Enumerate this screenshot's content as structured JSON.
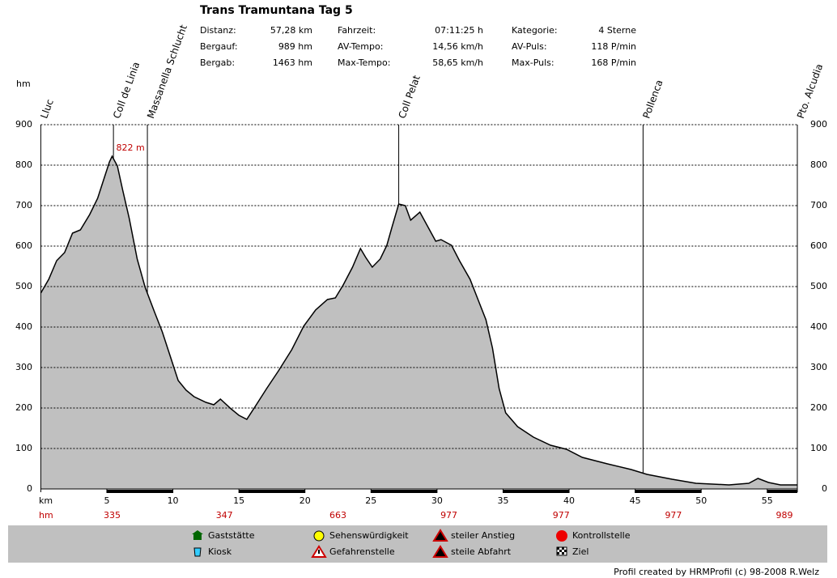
{
  "chart_data": {
    "type": "area",
    "title": "Trans Tramuntana Tag 5",
    "stats": [
      [
        {
          "label": "Distanz:",
          "value": "57,28 km"
        },
        {
          "label": "Bergauf:",
          "value": "989 hm"
        },
        {
          "label": "Bergab:",
          "value": "1463 hm"
        }
      ],
      [
        {
          "label": "Fahrzeit:",
          "value": "07:11:25 h"
        },
        {
          "label": "AV-Tempo:",
          "value": "14,56 km/h"
        },
        {
          "label": "Max-Tempo:",
          "value": "58,65 km/h"
        }
      ],
      [
        {
          "label": "Kategorie:",
          "value": "4 Sterne"
        },
        {
          "label": "AV-Puls:",
          "value": "118 P/min"
        },
        {
          "label": "Max-Puls:",
          "value": "168 P/min"
        }
      ]
    ],
    "x_label": "km",
    "y_label": "hm",
    "xlim": [
      0,
      57.28
    ],
    "ylim": [
      0,
      900
    ],
    "xticks": [
      5,
      10,
      15,
      20,
      25,
      30,
      35,
      40,
      45,
      50,
      55
    ],
    "yticks": [
      0,
      100,
      200,
      300,
      400,
      500,
      600,
      700,
      800,
      900
    ],
    "grid": true,
    "color": "#c0c0c0",
    "x": [
      0,
      0.6,
      1.2,
      1.8,
      2.4,
      3.0,
      3.7,
      4.3,
      4.8,
      5.2,
      5.4,
      5.8,
      6.2,
      6.7,
      7.3,
      7.9,
      8.6,
      9.2,
      9.8,
      10.4,
      11.0,
      11.6,
      12.5,
      13.1,
      13.6,
      14.4,
      15.0,
      15.6,
      16.2,
      17.1,
      18.0,
      19.0,
      19.9,
      20.8,
      21.7,
      22.3,
      22.9,
      23.6,
      24.2,
      24.6,
      25.1,
      25.7,
      26.2,
      26.6,
      27.1,
      27.6,
      28.0,
      28.7,
      29.3,
      29.9,
      30.3,
      31.1,
      31.7,
      32.5,
      33.1,
      33.7,
      34.2,
      34.7,
      35.2,
      36.1,
      37.3,
      38.6,
      39.8,
      41.0,
      42.9,
      44.7,
      45.9,
      47.8,
      49.6,
      52.1,
      53.6,
      54.3,
      55.1,
      56.0,
      57.28
    ],
    "values": [
      484,
      518,
      564,
      584,
      632,
      640,
      678,
      718,
      768,
      808,
      822,
      798,
      738,
      668,
      568,
      498,
      438,
      388,
      328,
      268,
      244,
      228,
      214,
      208,
      222,
      198,
      182,
      172,
      202,
      248,
      292,
      344,
      402,
      442,
      468,
      472,
      504,
      548,
      594,
      572,
      548,
      568,
      602,
      648,
      704,
      700,
      664,
      684,
      648,
      612,
      616,
      602,
      564,
      518,
      468,
      418,
      348,
      248,
      188,
      154,
      128,
      108,
      98,
      78,
      62,
      48,
      36,
      24,
      14,
      10,
      14,
      26,
      16,
      10,
      10
    ],
    "annotation": {
      "x": 5.4,
      "value": 822,
      "label": "822 m"
    },
    "waypoints": [
      {
        "name": "Lluc",
        "km": 0
      },
      {
        "name": "Coll de Linia",
        "km": 5.5
      },
      {
        "name": "Massanella Schlucht",
        "km": 8.07
      },
      {
        "name": "Coll Pelat",
        "km": 27.1
      },
      {
        "name": "Pollenca",
        "km": 45.6
      },
      {
        "name": "Pto. Alcudia",
        "km": 57.28
      }
    ],
    "climb_row": {
      "label": "hm",
      "points": [
        {
          "km": 5.4,
          "value": 335
        },
        {
          "km": 13.9,
          "value": 347
        },
        {
          "km": 22.5,
          "value": 663
        },
        {
          "km": 30.9,
          "value": 977
        },
        {
          "km": 39.4,
          "value": 977
        },
        {
          "km": 47.9,
          "value": 977
        },
        {
          "km": 56.3,
          "value": 989
        }
      ]
    },
    "legend": [
      "Gaststätte",
      "Kiosk",
      "Sehenswürdigkeit",
      "Gefahrenstelle",
      "steiler Anstieg",
      "steile Abfahrt",
      "Kontrollstelle",
      "Ziel"
    ],
    "footer": "Profil created by HRMProfil (c) 98-2008 R.Welz"
  }
}
